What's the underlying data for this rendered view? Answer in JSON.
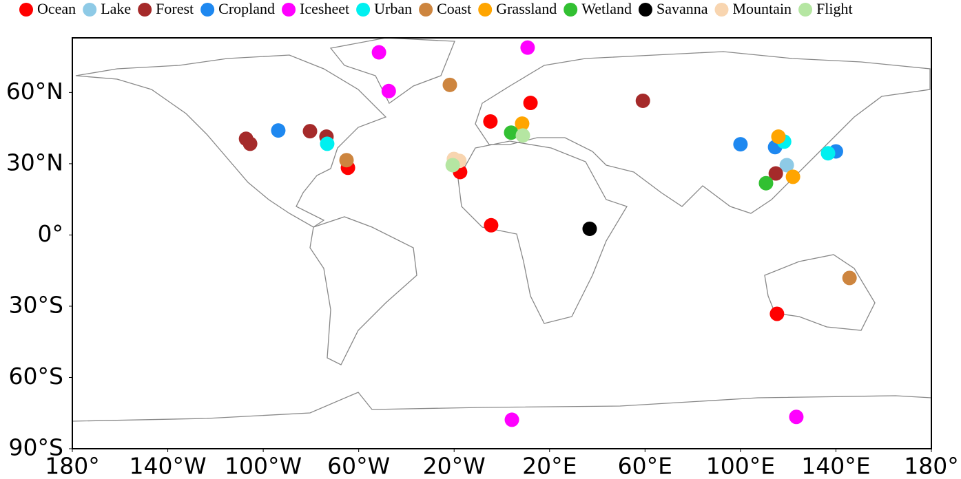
{
  "chart_data": {
    "type": "scatter",
    "xlim": [
      -180,
      180
    ],
    "ylim": [
      -90,
      83
    ],
    "xticks": [
      {
        "value": -180,
        "label": "180°"
      },
      {
        "value": -140,
        "label": "140°W"
      },
      {
        "value": -100,
        "label": "100°W"
      },
      {
        "value": -60,
        "label": "60°W"
      },
      {
        "value": -20,
        "label": "20°W"
      },
      {
        "value": 20,
        "label": "20°E"
      },
      {
        "value": 60,
        "label": "60°E"
      },
      {
        "value": 100,
        "label": "100°E"
      },
      {
        "value": 140,
        "label": "140°E"
      },
      {
        "value": 180,
        "label": "180°"
      }
    ],
    "yticks": [
      {
        "value": 60,
        "label": "60°N"
      },
      {
        "value": 30,
        "label": "30°N"
      },
      {
        "value": 0,
        "label": "0°"
      },
      {
        "value": -30,
        "label": "30°S"
      },
      {
        "value": -60,
        "label": "60°S"
      },
      {
        "value": -90,
        "label": "90°S"
      }
    ],
    "series": [
      {
        "name": "Ocean",
        "color": "#ff0000",
        "x": [
          -4.8,
          12,
          -64.5,
          -17.5,
          -4.5,
          115.3
        ],
        "values": [
          47.8,
          55.6,
          28.3,
          26.5,
          4.1,
          -33.2
        ]
      },
      {
        "name": "Lake",
        "color": "#8ecae6",
        "x": [
          119.4
        ],
        "values": [
          29.4
        ]
      },
      {
        "name": "Forest",
        "color": "#a52a2a",
        "x": [
          -107.2,
          -105.5,
          -80.4,
          -73.5,
          59.1,
          114.8
        ],
        "values": [
          40.5,
          38.4,
          43.7,
          41.4,
          56.5,
          25.9
        ]
      },
      {
        "name": "Cropland",
        "color": "#1e88f0",
        "x": [
          -93.7,
          100,
          114.5,
          140
        ],
        "values": [
          44,
          38.2,
          37,
          35.2
        ]
      },
      {
        "name": "Icesheet",
        "color": "#ff00ff",
        "x": [
          -51.5,
          10.8,
          -47.4,
          4.2,
          123.4
        ],
        "values": [
          76.9,
          78.9,
          60.6,
          -77.8,
          -76.6
        ]
      },
      {
        "name": "Urban",
        "color": "#00f0f0",
        "x": [
          -73.2,
          118.3,
          136.7
        ],
        "values": [
          38.4,
          39.3,
          34.4
        ]
      },
      {
        "name": "Coast",
        "color": "#cd853f",
        "x": [
          -21.8,
          -65.1,
          145.7
        ],
        "values": [
          63.2,
          31.5,
          -18.1
        ]
      },
      {
        "name": "Grassland",
        "color": "#ffa500",
        "x": [
          8.5,
          115.9,
          122
        ],
        "values": [
          46.9,
          41.4,
          24.5
        ]
      },
      {
        "name": "Wetland",
        "color": "#32c032",
        "x": [
          3.9,
          110.7
        ],
        "values": [
          43.1,
          21.8
        ]
      },
      {
        "name": "Savanna",
        "color": "#000000",
        "x": [
          36.8
        ],
        "values": [
          2.6
        ]
      },
      {
        "name": "Mountain",
        "color": "#f8d5b0",
        "x": [
          -20.1,
          -17.8
        ],
        "values": [
          32,
          31.2
        ]
      },
      {
        "name": "Flight",
        "color": "#b5e6a2",
        "x": [
          8.8,
          -20.6
        ],
        "values": [
          41.9,
          29.4
        ]
      }
    ]
  }
}
